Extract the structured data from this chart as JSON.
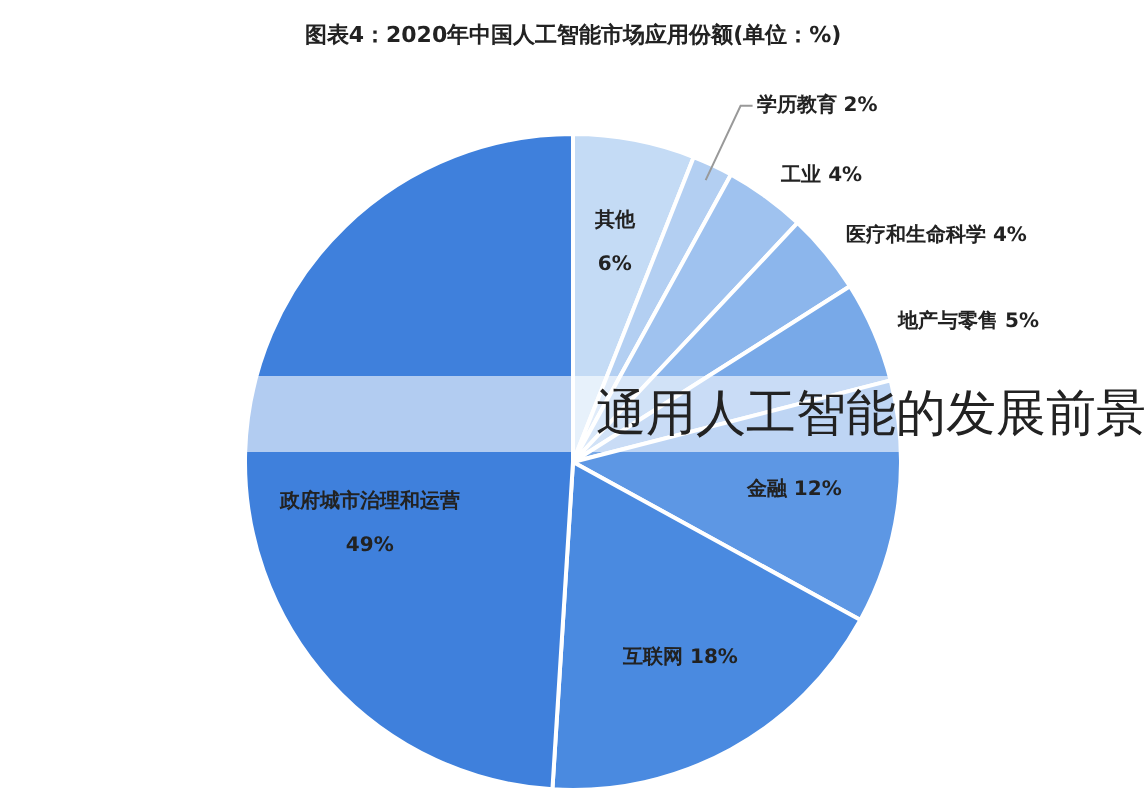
{
  "chart_data": {
    "type": "pie",
    "title": "图表4：2020年中国人工智能市场应用份额(单位：%)",
    "categories": [
      "其他",
      "学历教育",
      "工业",
      "医疗和生命科学",
      "地产与零售",
      "金融",
      "互联网",
      "政府城市治理和运营"
    ],
    "values": [
      6,
      2,
      4,
      4,
      5,
      12,
      18,
      49
    ],
    "colors": [
      "#c4dbf5",
      "#b3cff2",
      "#9fc2ef",
      "#8cb6ec",
      "#78a9e8",
      "#5d97e4",
      "#4a8ae0",
      "#3f80dc"
    ],
    "value_labels": [
      "6%",
      "2%",
      "4%",
      "4%",
      "5%",
      "12%",
      "18%",
      "49%"
    ],
    "annotations": [
      "通用人工智能的发展前景"
    ]
  }
}
